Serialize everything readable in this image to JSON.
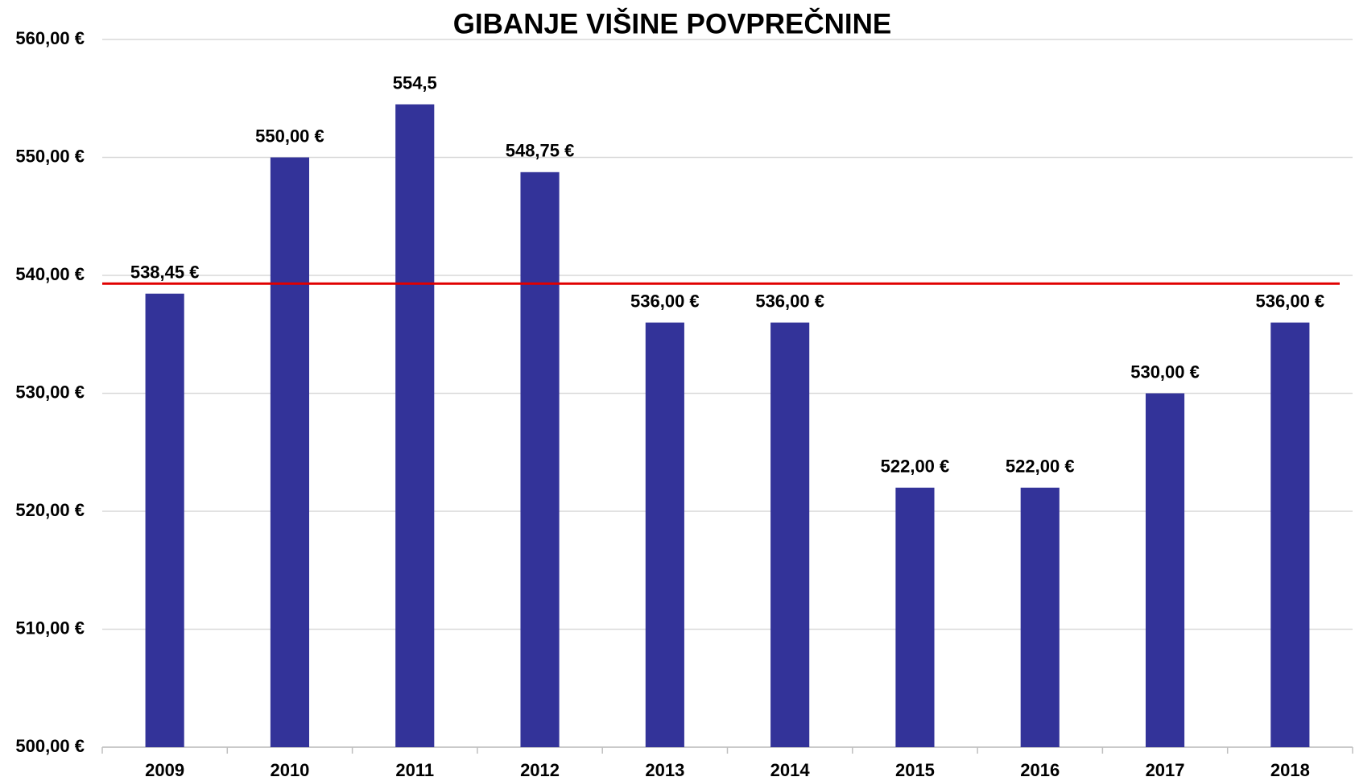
{
  "chart_data": {
    "type": "bar",
    "title": "GIBANJE VIŠINE POVPREČNINE",
    "categories": [
      "2009",
      "2010",
      "2011",
      "2012",
      "2013",
      "2014",
      "2015",
      "2016",
      "2017",
      "2018"
    ],
    "values": [
      538.45,
      550,
      554.5,
      548.75,
      536,
      536,
      522,
      522,
      530,
      536
    ],
    "value_labels": [
      "538,45 €",
      "550,00 €",
      "554,5",
      "548,75 €",
      "536,00 €",
      "536,00 €",
      "522,00 €",
      "522,00 €",
      "530,00 €",
      "536,00 €"
    ],
    "color": "#333399",
    "ylim": [
      500,
      560
    ],
    "yticks": [
      {
        "value": 500,
        "label": "500,00 €"
      },
      {
        "value": 510,
        "label": "510,00 €"
      },
      {
        "value": 520,
        "label": "520,00 €"
      },
      {
        "value": 530,
        "label": "530,00 €"
      },
      {
        "value": 540,
        "label": "540,00 €"
      },
      {
        "value": 550,
        "label": "550,00 €"
      },
      {
        "value": 560,
        "label": "560,00 €"
      }
    ],
    "grid": true,
    "reference_line": {
      "value": 539.3,
      "color": "#e00000"
    }
  }
}
